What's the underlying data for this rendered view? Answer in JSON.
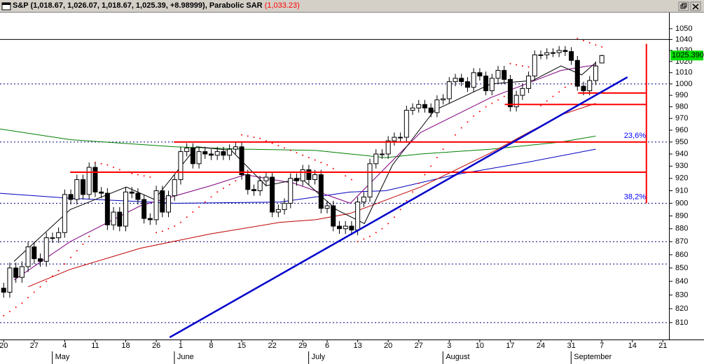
{
  "chart_data": {
    "type": "candlestick",
    "title": "S&P (1,018.67, 1,026.07, 1,018.67, 1,025.39, +8.98999), Parabolic SAR",
    "sar_title": "(1,033.23)",
    "log_scale": true,
    "ylim": [
      798,
      1065
    ],
    "yticks": [
      810,
      820,
      830,
      840,
      850,
      860,
      870,
      880,
      890,
      900,
      910,
      920,
      930,
      940,
      950,
      960,
      970,
      980,
      990,
      1000,
      1010,
      1020,
      1030,
      1040,
      1050
    ],
    "xlim": [
      -0.6,
      109
    ],
    "xticks": [
      {
        "value": 0,
        "label": "20"
      },
      {
        "value": 5,
        "label": "27"
      },
      {
        "value": 10,
        "label": "4"
      },
      {
        "value": 15,
        "label": "11"
      },
      {
        "value": 20,
        "label": "18"
      },
      {
        "value": 25,
        "label": "26"
      },
      {
        "value": 29,
        "label": "1"
      },
      {
        "value": 34,
        "label": "8"
      },
      {
        "value": 39,
        "label": "15"
      },
      {
        "value": 44,
        "label": "22"
      },
      {
        "value": 49,
        "label": "29"
      },
      {
        "value": 53,
        "label": "6"
      },
      {
        "value": 58,
        "label": "13"
      },
      {
        "value": 63,
        "label": "20"
      },
      {
        "value": 68,
        "label": "27"
      },
      {
        "value": 73,
        "label": "3"
      },
      {
        "value": 78,
        "label": "10"
      },
      {
        "value": 83,
        "label": "17"
      },
      {
        "value": 88,
        "label": "24"
      },
      {
        "value": 93,
        "label": "31"
      },
      {
        "value": 98,
        "label": "7"
      },
      {
        "value": 103,
        "label": "14"
      },
      {
        "value": 108,
        "label": "21"
      }
    ],
    "months": [
      {
        "value": 9,
        "label": "May"
      },
      {
        "value": 29,
        "label": "June"
      },
      {
        "value": 51,
        "label": "July"
      },
      {
        "value": 73,
        "label": "August"
      },
      {
        "value": 94,
        "label": "September"
      }
    ],
    "up_color": "#ffffff",
    "down_color": "#000000",
    "open": [
      835,
      832,
      850,
      843,
      851,
      866,
      857,
      855,
      873,
      873,
      877,
      907,
      903,
      919,
      907,
      929,
      909,
      908,
      883,
      893,
      882,
      909,
      908,
      903,
      888,
      887,
      910,
      893,
      906,
      919,
      942,
      945,
      932,
      942,
      940,
      939,
      942,
      939,
      944,
      946,
      923,
      911,
      910,
      918,
      921,
      893,
      895,
      900,
      920,
      918,
      927,
      919,
      923,
      896,
      898,
      882,
      880,
      882,
      879,
      901,
      905,
      932,
      940,
      940,
      951,
      954,
      954,
      977,
      979,
      982,
      979,
      975,
      986,
      987,
      1002,
      1005,
      1002,
      997,
      1010,
      1007,
      994,
      1005,
      1012,
      1004,
      980,
      990,
      996,
      1007,
      1026,
      1026,
      1028,
      1028,
      1030,
      1029,
      1021,
      998,
      994,
      1003,
      1018.67
    ],
    "high": [
      839,
      854,
      854,
      855,
      870,
      870,
      861,
      877,
      877,
      881,
      911,
      911,
      923,
      923,
      933,
      933,
      913,
      912,
      897,
      897,
      913,
      913,
      912,
      907,
      892,
      914,
      914,
      910,
      923,
      946,
      949,
      949,
      946,
      946,
      944,
      946,
      946,
      948,
      950,
      950,
      927,
      915,
      922,
      925,
      925,
      899,
      904,
      924,
      924,
      931,
      931,
      927,
      927,
      902,
      902,
      886,
      886,
      886,
      905,
      909,
      936,
      944,
      944,
      955,
      958,
      958,
      981,
      983,
      986,
      986,
      983,
      990,
      991,
      1006,
      1009,
      1009,
      1006,
      1014,
      1014,
      1011,
      1009,
      1016,
      1016,
      1008,
      994,
      1000,
      1011,
      1030,
      1030,
      1032,
      1032,
      1034,
      1034,
      1033,
      1025,
      1002,
      1007,
      1020,
      1026.07
    ],
    "low": [
      828,
      828,
      839,
      839,
      847,
      853,
      851,
      851,
      869,
      869,
      873,
      899,
      899,
      903,
      903,
      905,
      904,
      879,
      879,
      878,
      878,
      904,
      899,
      884,
      883,
      883,
      889,
      889,
      902,
      915,
      938,
      928,
      928,
      936,
      935,
      935,
      935,
      935,
      940,
      919,
      907,
      906,
      906,
      914,
      889,
      889,
      891,
      896,
      914,
      914,
      915,
      915,
      892,
      892,
      878,
      876,
      876,
      875,
      875,
      897,
      901,
      928,
      936,
      936,
      947,
      950,
      950,
      973,
      975,
      975,
      971,
      971,
      982,
      983,
      998,
      998,
      993,
      993,
      1003,
      990,
      990,
      1001,
      1000,
      976,
      976,
      986,
      992,
      1003,
      1022,
      1022,
      1024,
      1024,
      1025,
      1017,
      994,
      990,
      990,
      999,
      1018.67
    ],
    "close": [
      832,
      850,
      843,
      851,
      866,
      857,
      855,
      873,
      873,
      877,
      907,
      903,
      919,
      907,
      929,
      909,
      908,
      883,
      893,
      882,
      909,
      908,
      903,
      888,
      887,
      910,
      893,
      906,
      919,
      942,
      945,
      932,
      942,
      940,
      939,
      942,
      939,
      944,
      946,
      923,
      911,
      910,
      918,
      921,
      893,
      895,
      900,
      920,
      918,
      927,
      919,
      923,
      896,
      898,
      882,
      880,
      882,
      879,
      901,
      905,
      932,
      940,
      940,
      951,
      954,
      954,
      977,
      979,
      982,
      979,
      975,
      986,
      987,
      1002,
      1005,
      1002,
      997,
      1010,
      1007,
      994,
      1005,
      1012,
      1004,
      980,
      990,
      996,
      1007,
      1026,
      1026,
      1028,
      1028,
      1030,
      1029,
      1021,
      998,
      994,
      1003,
      1016,
      1025.39
    ],
    "sar": {
      "color": "#ff0000",
      "values": [
        815,
        818,
        821,
        824,
        828,
        832,
        836,
        840,
        844,
        848,
        853,
        858,
        863,
        868,
        874,
        933,
        932,
        931,
        929,
        927,
        925,
        924,
        923,
        922,
        921,
        877,
        878,
        880,
        882,
        885,
        889,
        893,
        897,
        901,
        905,
        909,
        912,
        915,
        918,
        956,
        955,
        954,
        953,
        951,
        949,
        947,
        945,
        943,
        941,
        939,
        937,
        935,
        933,
        931,
        928,
        925,
        922,
        919,
        870,
        872,
        874,
        877,
        880,
        884,
        889,
        895,
        902,
        909,
        916,
        923,
        930,
        937,
        944,
        950,
        956,
        962,
        967,
        972,
        976,
        980,
        983,
        986,
        989,
        1018,
        1017,
        1016,
        1015,
        1014,
        981,
        985,
        989,
        993,
        997,
        1000,
        1041,
        1039,
        1037,
        1035,
        1033.23
      ]
    },
    "overlays": [
      {
        "color": "#008000",
        "x": [
          -0.6,
          10.9,
          28.1,
          39.6,
          51.1,
          56.8,
          62.6,
          68.3,
          79.8,
          91.3,
          97
        ],
        "values": [
          961,
          952,
          946,
          944,
          943,
          940,
          937,
          940,
          944,
          950,
          955
        ]
      },
      {
        "color": "#0000c0",
        "x": [
          -0.6,
          10.9,
          28.1,
          45.3,
          56.8,
          62.6,
          74,
          85.6,
          97
        ],
        "values": [
          908,
          904,
          900,
          901,
          909,
          910,
          923,
          933,
          944
        ]
      },
      {
        "color": "#c00000",
        "x": [
          4,
          10.9,
          22.4,
          33.9,
          45.3,
          51.1,
          56.8,
          68.3,
          79.8,
          91.3,
          97
        ],
        "values": [
          836,
          849,
          865,
          876,
          885,
          887,
          892,
          913,
          941,
          973,
          983
        ]
      },
      {
        "color": "#800080",
        "x": [
          1.7,
          10.9,
          22.4,
          33.9,
          39.6,
          47.6,
          56.8,
          62.6,
          68.3,
          79.8,
          91.3,
          97
        ],
        "values": [
          841,
          870,
          898,
          914,
          923,
          916,
          900,
          929,
          958,
          988,
          1012,
          1017
        ]
      },
      {
        "color": "#000000",
        "x": [
          1.7,
          10.9,
          20.1,
          24.7,
          31.6,
          37.3,
          43,
          48.8,
          54.5,
          59.1,
          63.7,
          70.6,
          79.8,
          86.7,
          91.3,
          94.7,
          97
        ],
        "values": [
          855,
          895,
          913,
          903,
          946,
          943,
          914,
          920,
          895,
          884,
          931,
          977,
          1000,
          1003,
          1016,
          1008,
          1019
        ]
      }
    ],
    "top_line": 1040,
    "dashed_levels": [
      1000,
      870,
      853,
      810
    ],
    "fib_levels": [
      {
        "value": 950,
        "label": "23,6%"
      },
      {
        "value": 900,
        "label": "38,2%"
      }
    ],
    "fib_color": "#0000ff",
    "red_lines": [
      {
        "value": 950,
        "x": [
          27.9,
          105.3
        ]
      },
      {
        "value": 925,
        "x": [
          10.9,
          105.3
        ]
      },
      {
        "value": 982,
        "x": [
          82.1,
          105.3
        ]
      },
      {
        "value": 992,
        "x": [
          94.1,
          105.3
        ]
      }
    ],
    "red_vertical": {
      "x": 105.3,
      "values": [
        1036,
        900
      ]
    },
    "trend_line": {
      "color": "#0000cc",
      "x": [
        27.2,
        102.2
      ],
      "values": [
        799.5,
        1006
      ]
    },
    "last_price": {
      "value": 1025.39,
      "label": "1025.390",
      "color": "#00e000"
    }
  }
}
